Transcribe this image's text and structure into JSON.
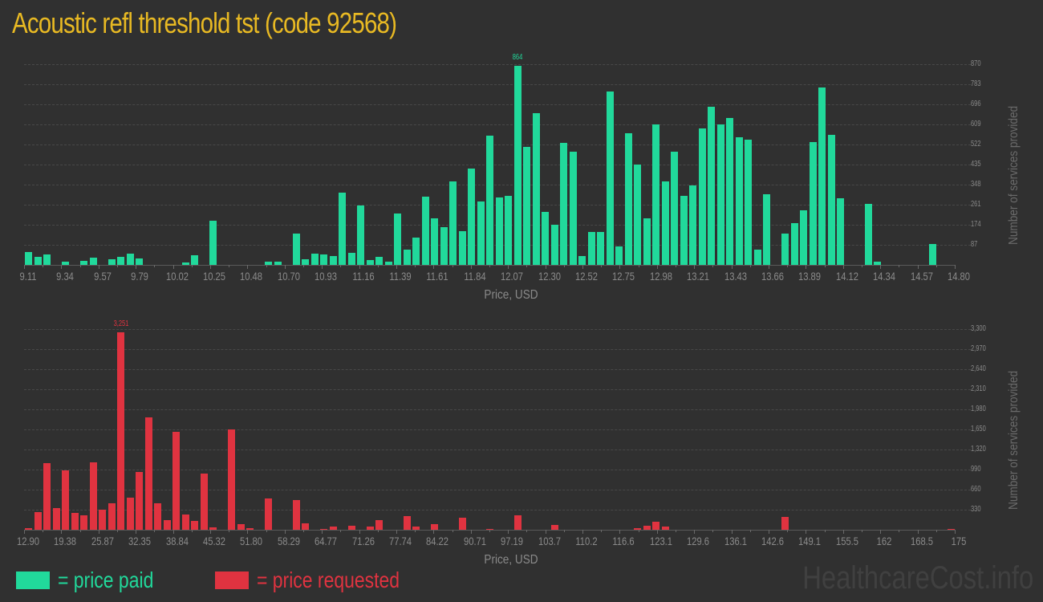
{
  "page": {
    "title": "Acoustic refl threshold tst (code 92568)",
    "watermark": "HealthcareCost.info"
  },
  "legend": {
    "paid": {
      "label": "= price paid",
      "color": "#21d99b"
    },
    "requested": {
      "label": "= price requested",
      "color": "#e03340"
    }
  },
  "chart_data": [
    {
      "type": "bar",
      "title": "Price paid distribution",
      "xlabel": "Price, USD",
      "ylabel": "Number of services provided",
      "color": "#21d99b",
      "ylim": [
        0,
        870
      ],
      "yticks": [
        "87",
        "174",
        "261",
        "348",
        "435",
        "522",
        "609",
        "696",
        "783",
        "870"
      ],
      "xticks": [
        "9.11",
        "9.34",
        "9.57",
        "9.79",
        "10.02",
        "10.25",
        "10.48",
        "10.70",
        "10.93",
        "11.16",
        "11.39",
        "11.61",
        "11.84",
        "12.07",
        "12.30",
        "12.52",
        "12.75",
        "12.98",
        "13.21",
        "13.43",
        "13.66",
        "13.89",
        "14.12",
        "14.34",
        "14.57",
        "14.80"
      ],
      "peak_label": "864",
      "peak_index": 53,
      "values": [
        56,
        35,
        45,
        0,
        14,
        0,
        17,
        31,
        0,
        24,
        35,
        49,
        28,
        0,
        0,
        0,
        0,
        10,
        42,
        0,
        191,
        0,
        0,
        0,
        0,
        0,
        14,
        14,
        0,
        136,
        24,
        49,
        45,
        38,
        313,
        52,
        257,
        21,
        35,
        14,
        223,
        66,
        118,
        296,
        202,
        164,
        362,
        146,
        418,
        275,
        560,
        292,
        299,
        864,
        512,
        658,
        230,
        174,
        529,
        491,
        38,
        143,
        143,
        752,
        80,
        571,
        435,
        202,
        609,
        362,
        491,
        299,
        345,
        592,
        686,
        609,
        637,
        553,
        543,
        66,
        306,
        0,
        136,
        181,
        237,
        532,
        769,
        564,
        289,
        0,
        0,
        264,
        14,
        0,
        0,
        0,
        0,
        0,
        90,
        0,
        0
      ]
    },
    {
      "type": "bar",
      "title": "Price requested distribution",
      "xlabel": "Price, USD",
      "ylabel": "Number of services provided",
      "color": "#e03340",
      "ylim": [
        0,
        3300
      ],
      "yticks": [
        "330",
        "660",
        "990",
        "1,320",
        "1,650",
        "1,980",
        "2,310",
        "2,640",
        "2,970",
        "3,300"
      ],
      "xticks": [
        "12.90",
        "19.38",
        "25.87",
        "32.35",
        "38.84",
        "45.32",
        "51.80",
        "58.29",
        "64.77",
        "71.26",
        "77.74",
        "84.22",
        "90.71",
        "97.19",
        "103.7",
        "110.2",
        "116.6",
        "123.1",
        "129.6",
        "136.1",
        "142.6",
        "149.1",
        "155.5",
        "162",
        "168.5",
        "175"
      ],
      "peak_label": "3,251",
      "peak_index": 10,
      "values": [
        26,
        290,
        1096,
        356,
        977,
        277,
        238,
        1109,
        330,
        436,
        3251,
        528,
        950,
        1848,
        436,
        158,
        1610,
        251,
        145,
        924,
        40,
        0,
        1650,
        92,
        26,
        0,
        515,
        0,
        0,
        488,
        106,
        0,
        13,
        53,
        0,
        66,
        0,
        53,
        158,
        0,
        0,
        224,
        53,
        0,
        92,
        0,
        0,
        198,
        0,
        0,
        13,
        0,
        0,
        238,
        0,
        0,
        0,
        79,
        0,
        0,
        0,
        0,
        0,
        0,
        0,
        0,
        26,
        66,
        132,
        53,
        0,
        0,
        0,
        0,
        0,
        0,
        0,
        0,
        0,
        0,
        0,
        0,
        211,
        0,
        0,
        0,
        0,
        0,
        0,
        0,
        0,
        0,
        0,
        0,
        0,
        0,
        0,
        0,
        0,
        0,
        9
      ]
    }
  ]
}
